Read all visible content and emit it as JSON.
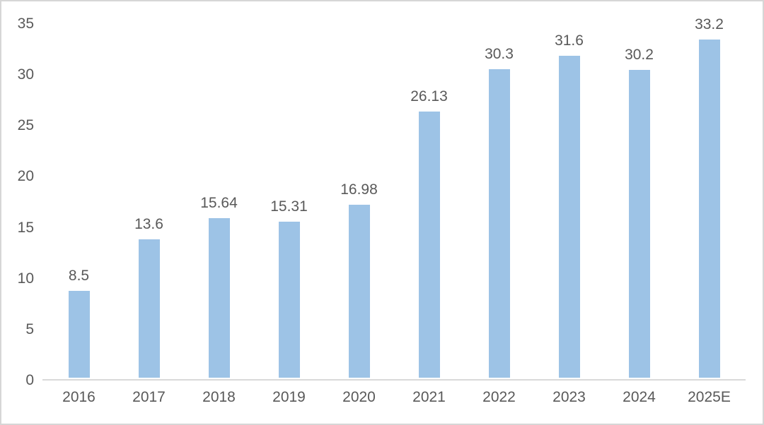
{
  "chart_data": {
    "type": "bar",
    "categories": [
      "2016",
      "2017",
      "2018",
      "2019",
      "2020",
      "2021",
      "2022",
      "2023",
      "2024",
      "2025E"
    ],
    "values": [
      8.5,
      13.6,
      15.64,
      15.31,
      16.98,
      26.13,
      30.3,
      31.6,
      30.2,
      33.2
    ],
    "value_labels": [
      "8.5",
      "13.6",
      "15.64",
      "15.31",
      "16.98",
      "26.13",
      "30.3",
      "31.6",
      "30.2",
      "33.2"
    ],
    "title": "",
    "xlabel": "",
    "ylabel": "",
    "ylim": [
      0,
      35
    ],
    "y_ticks": [
      0,
      5,
      10,
      15,
      20,
      25,
      30,
      35
    ],
    "y_tick_labels": [
      "0",
      "5",
      "10",
      "15",
      "20",
      "25",
      "30",
      "35"
    ],
    "grid": false,
    "legend": false,
    "data_labels_shown": true,
    "bar_color": "#9DC3E6",
    "axis_line_color": "#D9D9D9",
    "label_color": "#595959",
    "frame_border_color": "#D6D6D6"
  }
}
